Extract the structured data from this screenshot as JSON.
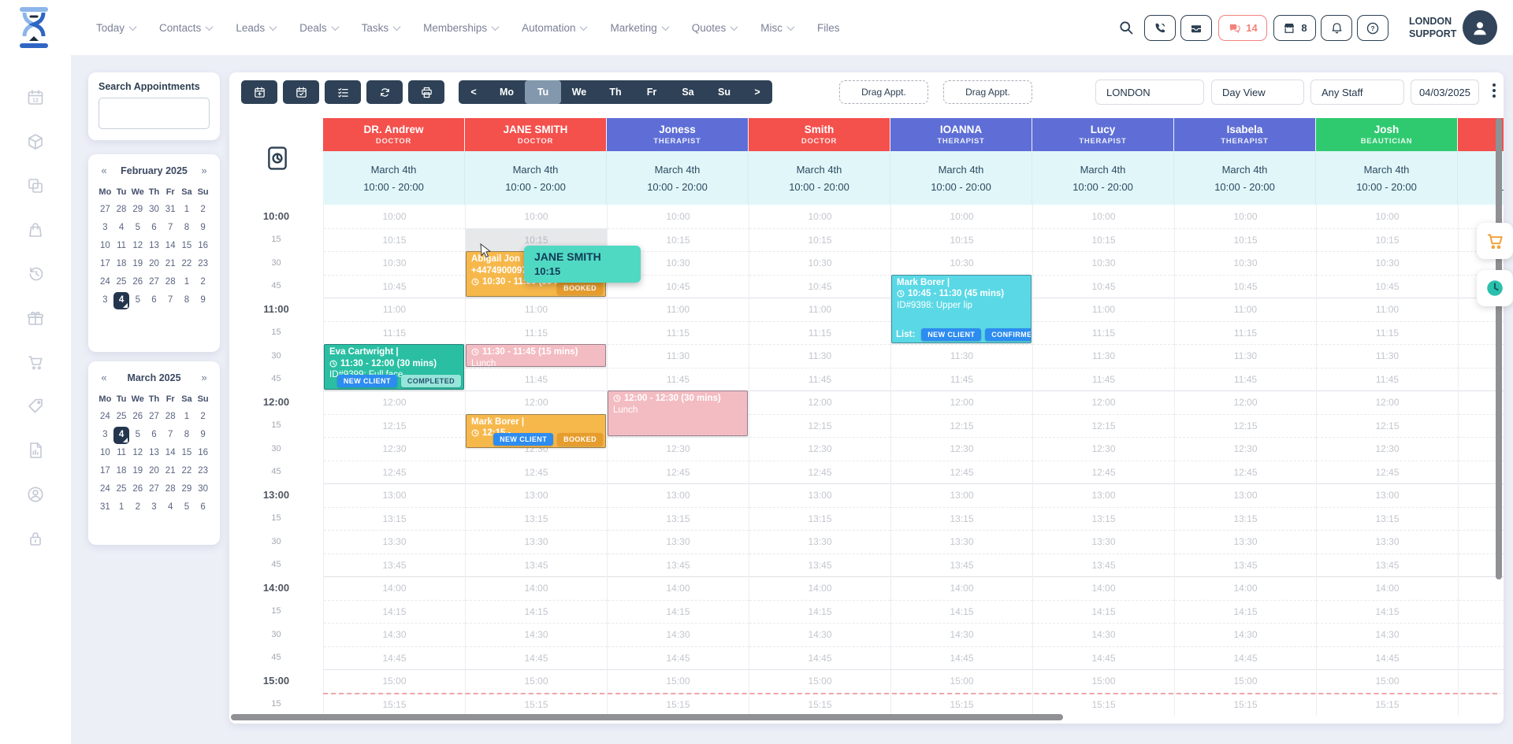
{
  "topbar": {
    "nav": [
      {
        "label": "Today",
        "menu": true
      },
      {
        "label": "Contacts",
        "menu": true
      },
      {
        "label": "Leads",
        "menu": true
      },
      {
        "label": "Deals",
        "menu": true
      },
      {
        "label": "Tasks",
        "menu": true
      },
      {
        "label": "Memberships",
        "menu": true
      },
      {
        "label": "Automation",
        "menu": true
      },
      {
        "label": "Marketing",
        "menu": true
      },
      {
        "label": "Quotes",
        "menu": true
      },
      {
        "label": "Misc",
        "menu": true
      },
      {
        "label": "Files",
        "menu": false
      }
    ],
    "chat_count": "14",
    "store_count": "8",
    "account_line1": "LONDON",
    "account_line2": "SUPPORT"
  },
  "sidebar_icons": [
    "appointments-calendar",
    "products-box",
    "copy-pages",
    "bookings-bag",
    "history-clock",
    "gift-vouchers",
    "shop-cart",
    "price-tag",
    "reports-file",
    "account-user",
    "privacy-lock"
  ],
  "search_panel": {
    "title": "Search Appointments",
    "value": "",
    "placeholder": ""
  },
  "mini_calendars": [
    {
      "title": "February 2025",
      "prev": "«",
      "next": "»",
      "weekdays": [
        "Mo",
        "Tu",
        "We",
        "Th",
        "Fr",
        "Sa",
        "Su"
      ],
      "weeks": [
        [
          "27",
          "28",
          "29",
          "30",
          "31",
          "1",
          "2"
        ],
        [
          "3",
          "4",
          "5",
          "6",
          "7",
          "8",
          "9"
        ],
        [
          "10",
          "11",
          "12",
          "13",
          "14",
          "15",
          "16"
        ],
        [
          "17",
          "18",
          "19",
          "20",
          "21",
          "22",
          "23"
        ],
        [
          "24",
          "25",
          "26",
          "27",
          "28",
          "1",
          "2"
        ],
        [
          "3",
          "4",
          "5",
          "6",
          "7",
          "8",
          "9"
        ]
      ],
      "selected": [
        5,
        1
      ]
    },
    {
      "title": "March 2025",
      "prev": "«",
      "next": "»",
      "weekdays": [
        "Mo",
        "Tu",
        "We",
        "Th",
        "Fr",
        "Sa",
        "Su"
      ],
      "weeks": [
        [
          "24",
          "25",
          "26",
          "27",
          "28",
          "1",
          "2"
        ],
        [
          "3",
          "4",
          "5",
          "6",
          "7",
          "8",
          "9"
        ],
        [
          "10",
          "11",
          "12",
          "13",
          "14",
          "15",
          "16"
        ],
        [
          "17",
          "18",
          "19",
          "20",
          "21",
          "22",
          "23"
        ],
        [
          "24",
          "25",
          "26",
          "27",
          "28",
          "29",
          "30"
        ],
        [
          "31",
          "1",
          "2",
          "3",
          "4",
          "5",
          "6"
        ]
      ],
      "selected": [
        1,
        1
      ]
    }
  ],
  "toolbar": {
    "icon_buttons": [
      "new-appointment",
      "check-appointments",
      "task-list",
      "refresh",
      "print"
    ],
    "pager": {
      "prev": "<",
      "next": ">",
      "days": [
        "Mo",
        "Tu",
        "We",
        "Th",
        "Fr",
        "Sa",
        "Su"
      ],
      "selected_index": 1
    },
    "drag_buttons": [
      "Drag Appt.",
      "Drag Appt."
    ],
    "location": "LONDON",
    "view": "Day View",
    "staff_filter": "Any Staff",
    "date": "04/03/2025"
  },
  "schedule": {
    "column_date": "March 4th",
    "column_hours": "10:00 - 20:00",
    "staff": [
      {
        "name": "DR. Andrew",
        "role": "DOCTOR",
        "color": "red"
      },
      {
        "name": "JANE SMITH",
        "role": "DOCTOR",
        "color": "red"
      },
      {
        "name": "Joness",
        "role": "THERAPIST",
        "color": "indigo"
      },
      {
        "name": "Smith",
        "role": "DOCTOR",
        "color": "red"
      },
      {
        "name": "IOANNA",
        "role": "THERAPIST",
        "color": "indigo"
      },
      {
        "name": "Lucy",
        "role": "THERAPIST",
        "color": "indigo"
      },
      {
        "name": "Isabela",
        "role": "THERAPIST",
        "color": "indigo"
      },
      {
        "name": "Josh",
        "role": "BEAUTICIAN",
        "color": "green"
      },
      {
        "name": "",
        "role": "",
        "color": "red",
        "partial": true
      }
    ],
    "times": [
      "10:00",
      "10:15",
      "10:30",
      "10:45",
      "11:00",
      "11:15",
      "11:30",
      "11:45",
      "12:00",
      "12:15",
      "12:30",
      "12:45",
      "13:00",
      "13:15",
      "13:30",
      "13:45",
      "14:00",
      "14:15",
      "14:30",
      "14:45",
      "15:00",
      "15:15"
    ],
    "hover": {
      "column": 1,
      "row": 1
    },
    "tooltip": {
      "title": "JANE SMITH",
      "time": "10:15"
    },
    "appointments": [
      {
        "column": 1,
        "row": 2,
        "span": 2,
        "color": "orange",
        "lines": [
          "Abigail Jon",
          "+4474900097"
        ],
        "time": "10:30 - 11:00 (30 mi",
        "badges": [
          {
            "label": "BOOKED",
            "style": "orange"
          }
        ]
      },
      {
        "column": 0,
        "row": 6,
        "span": 2,
        "color": "teal",
        "lines": [
          "Eva Cartwright |"
        ],
        "time": "11:30 - 12:00 (30 mins)",
        "service": "ID#9399: Full face",
        "badges": [
          {
            "label": "NEW CLIENT",
            "style": "blue"
          },
          {
            "label": "COMPLETED",
            "style": "done"
          }
        ]
      },
      {
        "column": 1,
        "row": 6,
        "span": 1,
        "color": "pink",
        "time": "11:30 - 11:45 (15 mins)",
        "service": "Lunch"
      },
      {
        "column": 1,
        "row": 9,
        "span": 1.5,
        "color": "orange",
        "lines": [
          "Mark Borer |"
        ],
        "time": "12:15 - ",
        "badges": [
          {
            "label": "NEW CLIENT",
            "style": "blue"
          },
          {
            "label": "BOOKED",
            "style": "orange"
          }
        ]
      },
      {
        "column": 2,
        "row": 8,
        "span": 2,
        "color": "pink",
        "time": "12:00 - 12:30 (30 mins)",
        "service": "Lunch"
      },
      {
        "column": 4,
        "row": 3,
        "span": 3,
        "color": "cyan",
        "lines": [
          "Mark Borer |"
        ],
        "time": "10:45 - 11:30 (45 mins)",
        "service": "ID#9398: Upper lip",
        "list_label": "List:",
        "badges": [
          {
            "label": "NEW CLIENT",
            "style": "blue"
          },
          {
            "label": "CONFIRMED",
            "style": "blue"
          }
        ]
      }
    ],
    "now_line_row": 21
  },
  "colors": {
    "red": "#f4504c",
    "indigo": "#5e6ed6",
    "green": "#2fca70",
    "orange": "#f7b84b",
    "teal": "#2abfa3",
    "pink": "#f3bcc2",
    "cyan": "#5ad8e5",
    "badge_blue": "#2d8cf0",
    "badge_orange": "#e79d2d",
    "badge_done_bg": "#97e5da",
    "badge_done_text": "#26506b",
    "tooltip_bg": "#4fd9c3",
    "navy": "#2c3f52"
  }
}
